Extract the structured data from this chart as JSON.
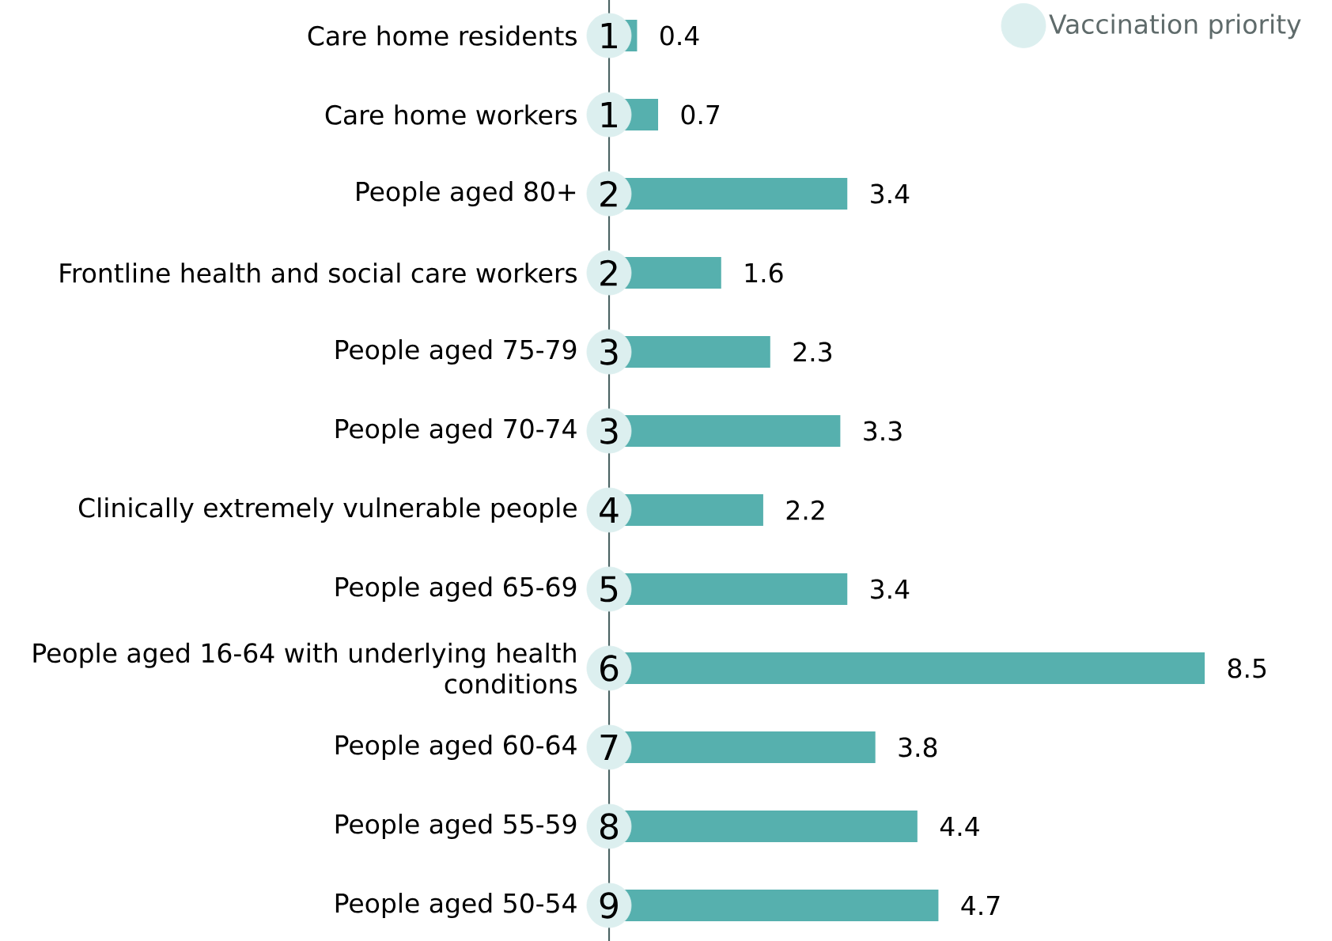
{
  "chart_data": {
    "type": "bar",
    "orientation": "horizontal",
    "categories": [
      "Care home residents",
      "Care home workers",
      "People aged 80+",
      "Frontline health and social care workers",
      "People aged 75-79",
      "People aged 70-74",
      "Clinically extremely vulnerable people",
      "People aged 65-69",
      "People aged 16-64 with underlying health conditions",
      "People aged 60-64",
      "People aged 55-59",
      "People aged 50-54"
    ],
    "series": [
      {
        "color": "#56b0ae",
        "values": [
          0.4,
          0.7,
          3.4,
          1.6,
          2.3,
          3.3,
          2.2,
          3.4,
          8.5,
          3.8,
          4.4,
          4.7
        ],
        "value_labels": [
          "0.4",
          "0.7",
          "3.4",
          "1.6",
          "2.3",
          "3.3",
          "2.2",
          "3.4",
          "8.5",
          "3.8",
          "4.4",
          "4.7"
        ]
      },
      {
        "type": "scatter",
        "name": "Vaccination priority",
        "color": "#dcefef",
        "values": [
          0,
          0,
          0,
          0,
          0,
          0,
          0,
          0,
          0,
          0,
          0,
          0
        ]
      }
    ],
    "annotations": [
      {
        "text": "1",
        "y": "Care home residents"
      },
      {
        "text": "1",
        "y": "Care home workers"
      },
      {
        "text": "2",
        "y": "People aged 80+"
      },
      {
        "text": "2",
        "y": "Frontline health and social care workers"
      },
      {
        "text": "3",
        "y": "People aged 75-79"
      },
      {
        "text": "3",
        "y": "People aged 70-74"
      },
      {
        "text": "4",
        "y": "Clinically extremely vulnerable people"
      },
      {
        "text": "5",
        "y": "People aged 65-69"
      },
      {
        "text": "6",
        "y": "People aged 16-64 with underlying health conditions"
      },
      {
        "text": "7",
        "y": "People aged 60-64"
      },
      {
        "text": "8",
        "y": "People aged 55-59"
      },
      {
        "text": "9",
        "y": "People aged 50-54"
      }
    ],
    "tick_labels": "y",
    "legend": "top right"
  }
}
